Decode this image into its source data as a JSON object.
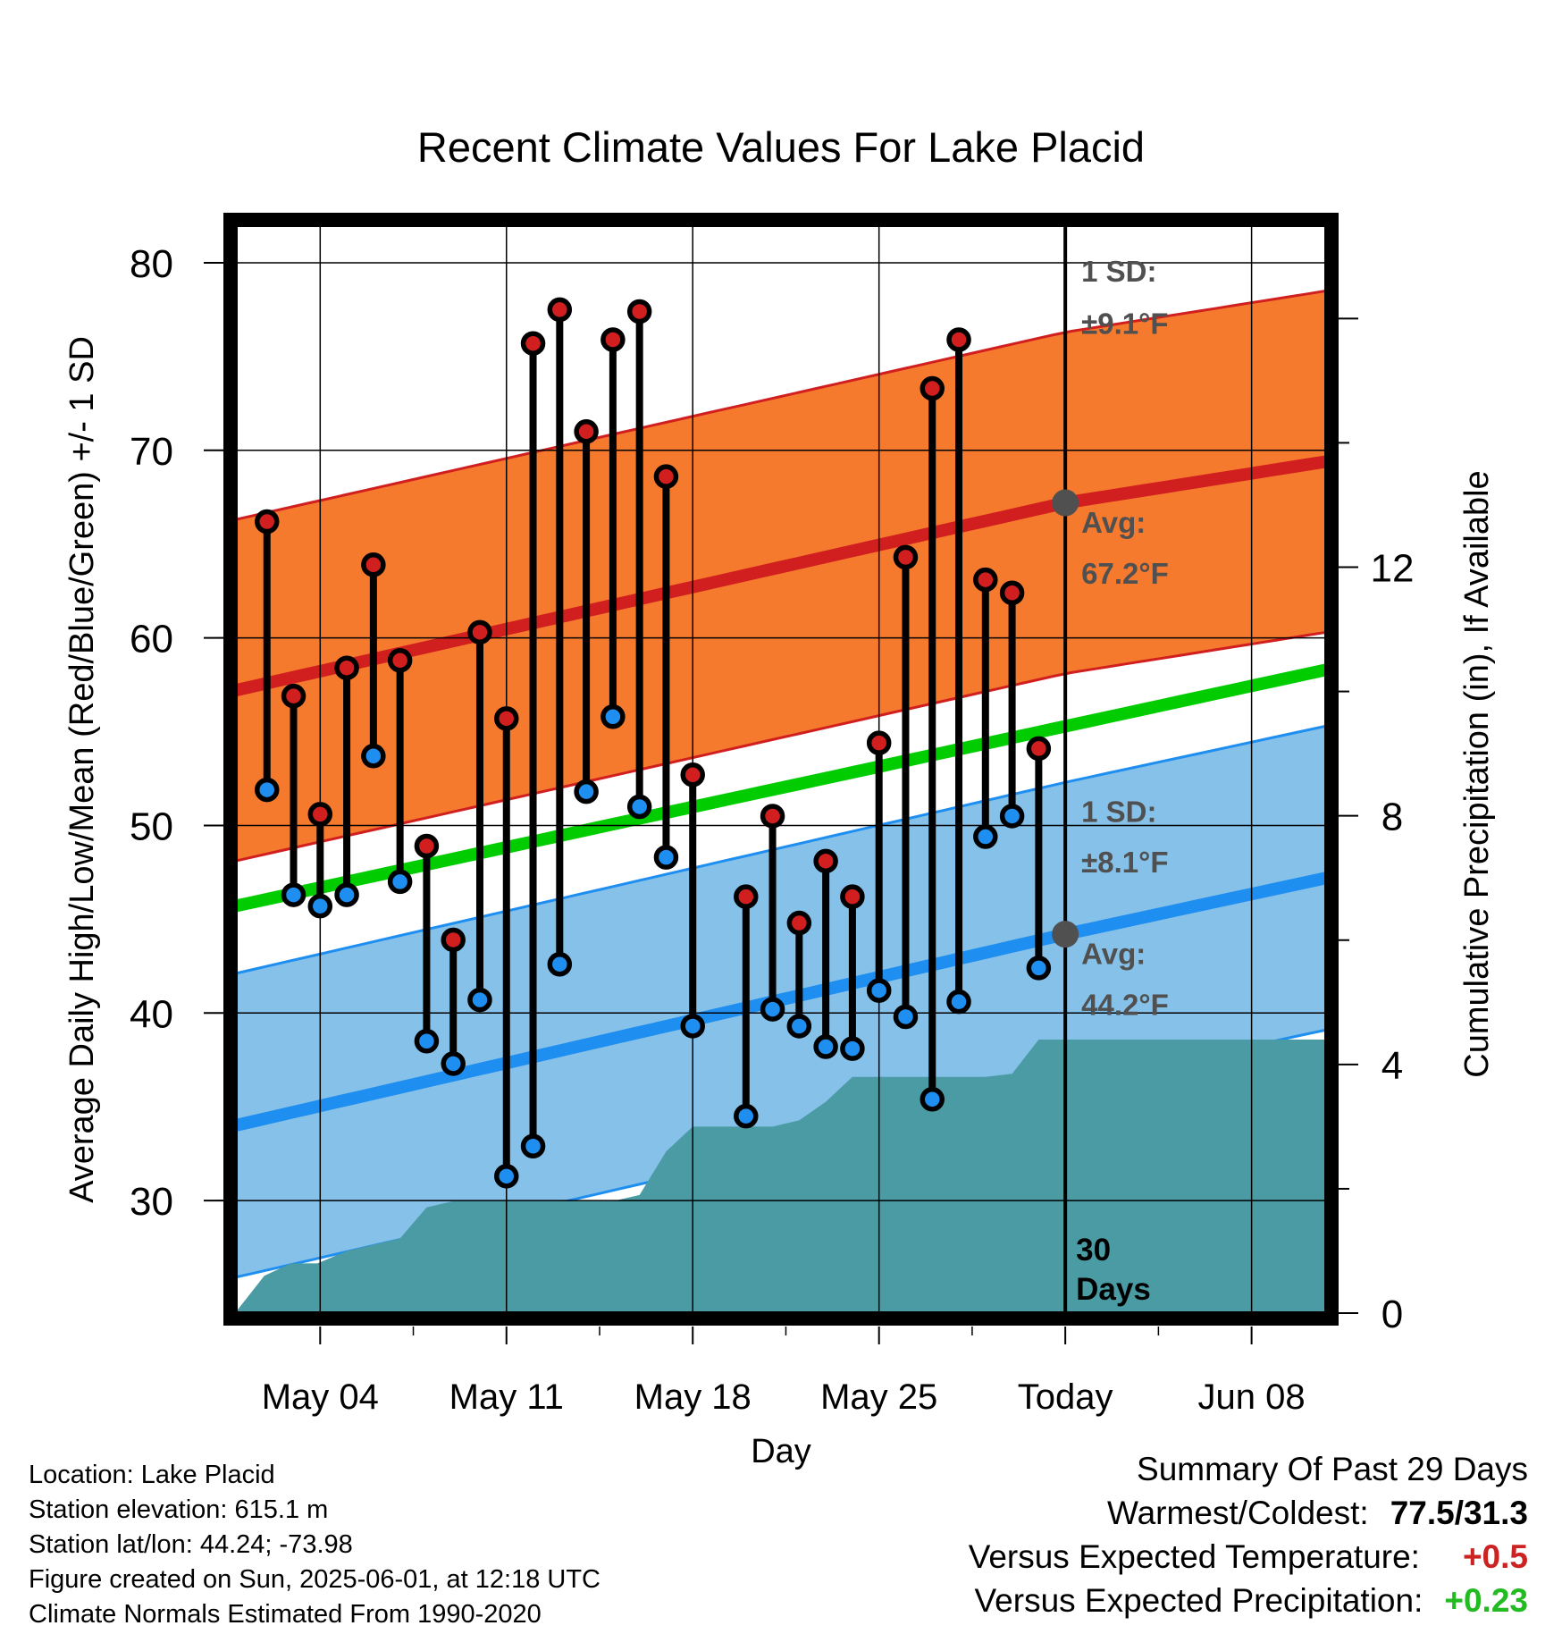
{
  "chart_data": {
    "type": "range-dot",
    "title": "Recent Climate Values For Lake Placid",
    "xlabel": "Day",
    "ylabel_left": "Average Daily High/Low/Mean (Red/Blue/Green) +/- 1 SD",
    "ylabel_right": "Cumulative Precipitation (in), If Available",
    "y_left_range": [
      24,
      82
    ],
    "y_left_ticks": [
      "30",
      "40",
      "50",
      "60",
      "70",
      "80"
    ],
    "y_right_range": [
      0,
      17.5
    ],
    "y_right_ticks": [
      "0",
      "4",
      "8",
      "12"
    ],
    "x_tick_labels": [
      "May 04",
      "May 11",
      "May 18",
      "May 25",
      "Today",
      "Jun 08"
    ],
    "x_tick_days": [
      4,
      11,
      18,
      25,
      32,
      39
    ],
    "x_range": [
      0.8,
      41.8
    ],
    "today_day": 32,
    "today_label": "30 Days",
    "colors": {
      "high": "#d11f1f",
      "low": "#1e8ef0",
      "mean": "#00cc00",
      "high_band": "#f57a2e",
      "low_band": "#85c1e8",
      "precip": "#4a9ba3",
      "marker": "#505050"
    },
    "normal_high": {
      "avg_day": [
        0.8,
        32,
        41.8
      ],
      "avg": [
        57.2,
        67.2,
        69.4
      ],
      "sd": 9.1
    },
    "normal_low": {
      "avg_day": [
        0.8,
        32,
        41.8
      ],
      "avg": [
        34.0,
        44.2,
        47.2
      ],
      "sd": 8.1
    },
    "normal_mean": {
      "day": [
        0.8,
        41.8
      ],
      "value": [
        45.7,
        58.3
      ]
    },
    "annotations": {
      "high_sd": "1 SD:",
      "high_sd_value": "±9.1°F",
      "high_avg": "Avg:",
      "high_avg_value": "67.2°F",
      "low_sd": "1 SD:",
      "low_sd_value": "±8.1°F",
      "low_avg": "Avg:",
      "low_avg_value": "44.2°F"
    },
    "days": [
      2,
      3,
      4,
      5,
      6,
      7,
      8,
      9,
      10,
      11,
      12,
      13,
      14,
      15,
      16,
      17,
      18,
      20,
      21,
      22,
      23,
      24,
      25,
      26,
      27,
      28,
      29,
      30,
      31
    ],
    "highs": [
      66.2,
      56.9,
      50.6,
      58.4,
      63.9,
      58.8,
      48.9,
      43.9,
      60.3,
      55.7,
      75.7,
      77.5,
      71.0,
      75.9,
      77.4,
      68.6,
      52.7,
      46.2,
      50.5,
      44.8,
      48.1,
      46.2,
      54.4,
      64.3,
      73.3,
      75.9,
      63.1,
      62.4,
      54.1
    ],
    "lows": [
      51.9,
      46.3,
      45.7,
      46.3,
      53.7,
      47.0,
      38.5,
      37.3,
      40.7,
      31.3,
      32.9,
      42.6,
      51.8,
      55.8,
      51.0,
      48.3,
      39.3,
      34.5,
      40.2,
      39.3,
      38.2,
      38.1,
      41.2,
      39.8,
      35.4,
      40.6,
      49.4,
      50.5,
      42.4
    ],
    "precip_day": [
      0.8,
      1.9,
      2.9,
      3.9,
      5,
      6,
      7,
      8,
      9,
      10,
      11,
      12,
      13,
      14,
      15,
      16,
      17,
      18,
      19,
      20,
      21,
      22,
      23,
      24,
      25,
      26,
      27,
      28,
      29,
      30,
      31,
      32,
      41.8
    ],
    "precip": [
      0,
      0.6,
      0.8,
      0.8,
      1.0,
      1.1,
      1.2,
      1.7,
      1.8,
      1.8,
      1.8,
      1.8,
      1.8,
      1.8,
      1.8,
      1.9,
      2.6,
      3.0,
      3.0,
      3.0,
      3.0,
      3.1,
      3.4,
      3.8,
      3.8,
      3.8,
      3.8,
      3.8,
      3.8,
      3.85,
      4.4,
      4.4,
      4.4
    ]
  },
  "footer": {
    "location": "Location: Lake Placid",
    "elevation": "Station elevation: 615.1 m",
    "latlon": "Station lat/lon: 44.24; -73.98",
    "created": "Figure created on Sun, 2025-06-01, at 12:18 UTC",
    "normals": "Climate Normals Estimated From 1990-2020"
  },
  "summary": {
    "title": "Summary Of Past 29 Days",
    "warm_cold_label": "Warmest/Coldest:",
    "warm_cold_value": "77.5/31.3",
    "temp_label": "Versus Expected Temperature:",
    "temp_value": "+0.5",
    "temp_color": "#cc2222",
    "precip_label": "Versus Expected Precipitation:",
    "precip_value": "+0.23",
    "precip_color": "#22bb22"
  }
}
